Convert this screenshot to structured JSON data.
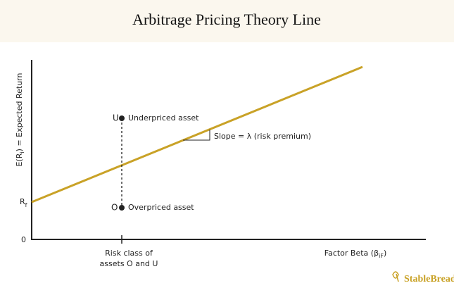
{
  "header": {
    "title": "Arbitrage Pricing Theory Line"
  },
  "axes": {
    "y_label": {
      "main": "E(R",
      "sub": "i",
      "rest": ") = Expected Return"
    },
    "x_label": {
      "main": "Factor Beta (β",
      "sub": "iF",
      "rest": ")"
    },
    "rf": {
      "main": "R",
      "sub": "f"
    },
    "origin": "0"
  },
  "points": [
    {
      "letter": "U",
      "label": "Underpriced asset"
    },
    {
      "letter": "O",
      "label": "Overpriced asset"
    }
  ],
  "slope_label": "Slope = λ (risk premium)",
  "risk_class": [
    "Risk class of",
    "assets O and U"
  ],
  "logo": "StableBread"
}
